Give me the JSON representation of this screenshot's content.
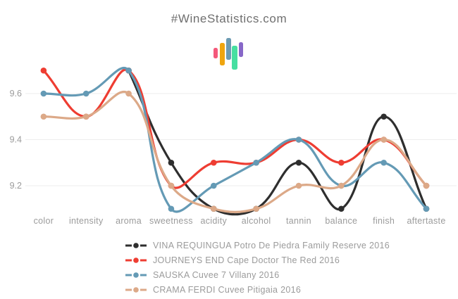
{
  "header": {
    "title": "#WineStatistics.com"
  },
  "logo": {
    "bars": [
      {
        "name": "pink-bar",
        "color": "#f4587a"
      },
      {
        "name": "orange-bar",
        "color": "#efa50f"
      },
      {
        "name": "blue-bar",
        "color": "#6c9bb3"
      },
      {
        "name": "green-bar",
        "color": "#47dfa1"
      },
      {
        "name": "purple-bar",
        "color": "#8767c8"
      }
    ]
  },
  "chart_data": {
    "type": "line",
    "title": "#WineStatistics.com",
    "categories": [
      "color",
      "intensity",
      "aroma",
      "sweetness",
      "acidity",
      "alcohol",
      "tannin",
      "balance",
      "finish",
      "aftertaste"
    ],
    "y_ticks": [
      9.6,
      9.4,
      9.2
    ],
    "ylim": [
      9.0,
      9.8
    ],
    "grid": "horizontal-only",
    "legend_position": "bottom-left",
    "curve": "smooth-bezier",
    "series": [
      {
        "name": "VINA REQUINGUA Potro De Piedra Family Reserve 2016",
        "color": "#2e2e2e",
        "values": [
          null,
          null,
          9.7,
          9.3,
          9.1,
          9.1,
          9.3,
          9.1,
          9.5,
          9.1
        ]
      },
      {
        "name": "JOURNEYS END Cape Doctor The Red 2016",
        "color": "#ee3d32",
        "values": [
          9.7,
          9.5,
          9.7,
          9.2,
          9.3,
          9.3,
          9.4,
          9.3,
          9.4,
          9.2
        ]
      },
      {
        "name": "SAUSKA Cuvee 7 Villany 2016",
        "color": "#649ab5",
        "values": [
          9.6,
          9.6,
          9.7,
          9.1,
          9.2,
          9.3,
          9.4,
          9.2,
          9.3,
          9.1
        ]
      },
      {
        "name": "CRAMA FERDI Cuvee Pitigaia 2016",
        "color": "#dca988",
        "values": [
          9.5,
          9.5,
          9.6,
          9.2,
          9.1,
          9.1,
          9.2,
          9.2,
          9.4,
          9.2
        ]
      }
    ],
    "style": {
      "grid_color": "#ededed",
      "tick_label_color": "#9b9b9b",
      "axis_label_color": "#9b9b9b",
      "line_width": 3.2,
      "point_radius": 4.3
    }
  }
}
